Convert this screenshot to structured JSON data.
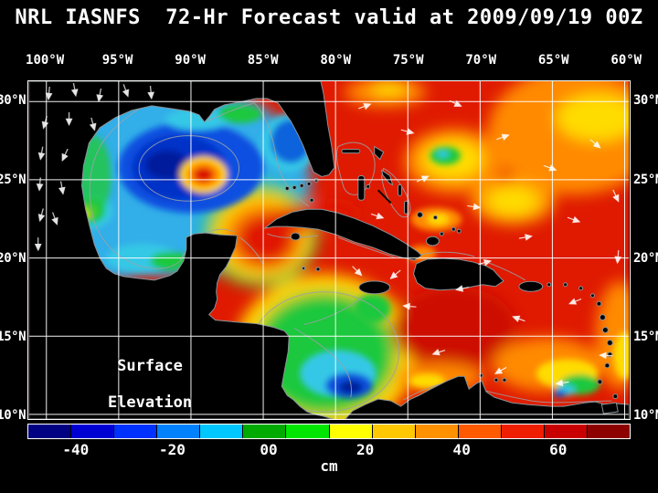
{
  "title": "NRL IASNFS  72-Hr Forecast valid at 2009/09/19 00Z",
  "axes": {
    "lon_ticks": [
      "100°W",
      "95°W",
      "90°W",
      "85°W",
      "80°W",
      "75°W",
      "70°W",
      "65°W",
      "60°W"
    ],
    "lat_ticks": [
      "30°N",
      "25°N",
      "20°N",
      "15°N",
      "10°N"
    ]
  },
  "map": {
    "overlay_line1": "Surface",
    "overlay_line2": "Elevation"
  },
  "colorbar": {
    "colors": [
      "#000082",
      "#0000D2",
      "#0032FF",
      "#0082FF",
      "#00C8FF",
      "#00AA00",
      "#00E600",
      "#FFFF00",
      "#FFC800",
      "#FF9100",
      "#FF5A00",
      "#F01E00",
      "#C80000",
      "#8C0000"
    ],
    "tick_labels": [
      "-40",
      "-20",
      "00",
      "20",
      "40",
      "60"
    ],
    "tick_values": [
      -40,
      -20,
      0,
      20,
      40,
      60
    ],
    "range": [
      -50,
      75
    ],
    "unit": "cm"
  },
  "chart_data": {
    "type": "heatmap",
    "title": "NRL IASNFS 72-Hr Forecast valid at 2009/09/19 00Z",
    "variable": "Surface Elevation",
    "unit": "cm",
    "region": "Gulf of Mexico and Caribbean Sea (Intra-Americas Sea)",
    "x_axis": {
      "label": "Longitude",
      "ticks_deg_w": [
        100,
        95,
        90,
        85,
        80,
        75,
        70,
        65,
        60
      ]
    },
    "y_axis": {
      "label": "Latitude",
      "ticks_deg_n": [
        30,
        25,
        20,
        15,
        10
      ]
    },
    "colorbar": {
      "range_cm": [
        -50,
        75
      ],
      "ticks_cm": [
        -40,
        -20,
        0,
        20,
        40,
        60
      ]
    },
    "grid": true,
    "notable_features": [
      {
        "feature": "Cold-core eddy, central Gulf of Mexico near 91W 25.5N",
        "ssh_cm": -40
      },
      {
        "feature": "Warm-core ring embedded in Gulf cold eddy near 89W 25N",
        "ssh_cm": 45
      },
      {
        "feature": "Loop Current high through Yucatan Channel near 85W 22N",
        "ssh_cm": 40
      },
      {
        "feature": "Gulf of Mexico background level",
        "ssh_cm": -10
      },
      {
        "feature": "Broad high SSH over Caribbean and western Atlantic",
        "ssh_cm": 40
      },
      {
        "feature": "Low SSH cell, southwest Caribbean near 79W 12N",
        "ssh_cm": -35
      },
      {
        "feature": "Low SSH cell, southeast Caribbean near 65W 11.5N",
        "ssh_cm": -20
      }
    ]
  }
}
